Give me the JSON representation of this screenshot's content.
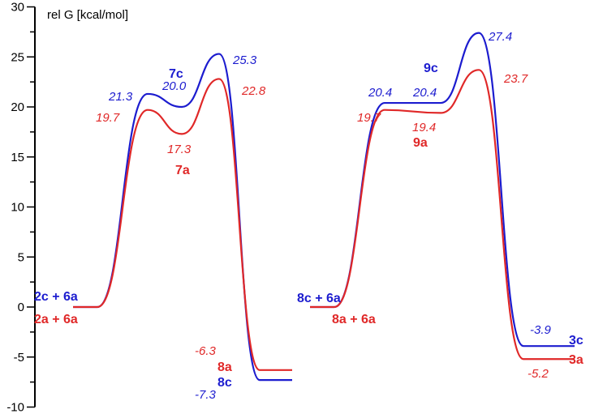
{
  "chart_data": {
    "type": "line",
    "ylabel": "rel G [kcal/mol]",
    "ylim": [
      -10,
      30
    ],
    "yticks": [
      "30",
      "25",
      "20",
      "15",
      "10",
      "5",
      "0",
      "-5",
      "-10"
    ],
    "grid": false,
    "colors": {
      "c_series": "#1c1ccf",
      "a_series": "#e02828"
    },
    "profiles": [
      {
        "series": [
          {
            "color": "#1c1ccf",
            "values": [
              0,
              21.3,
              20.0,
              25.3,
              -7.3
            ]
          },
          {
            "color": "#e02828",
            "values": [
              0,
              19.7,
              17.3,
              22.8,
              -6.3
            ]
          }
        ],
        "labels": {
          "start_c": "2c + 6a",
          "start_a": "2a + 6a",
          "int_c": "7c",
          "int_a": "7a",
          "prod_c": "8c",
          "prod_a": "8a"
        },
        "value_labels": {
          "c": [
            "21.3",
            "20.0",
            "25.3",
            "-7.3"
          ],
          "a": [
            "19.7",
            "17.3",
            "22.8",
            "-6.3"
          ]
        }
      },
      {
        "series": [
          {
            "color": "#1c1ccf",
            "values": [
              0,
              20.4,
              20.4,
              27.4,
              -3.9
            ]
          },
          {
            "color": "#e02828",
            "values": [
              0,
              19.7,
              19.4,
              23.7,
              -5.2
            ]
          }
        ],
        "labels": {
          "start_c": "8c + 6a",
          "start_a": "8a + 6a",
          "int_c": "9c",
          "int_a": "9a",
          "prod_c": "3c",
          "prod_a": "3a"
        },
        "value_labels": {
          "c": [
            "20.4",
            "20.4",
            "27.4",
            "-3.9"
          ],
          "a": [
            "19.7",
            "19.4",
            "23.7",
            "-5.2"
          ]
        }
      }
    ]
  }
}
